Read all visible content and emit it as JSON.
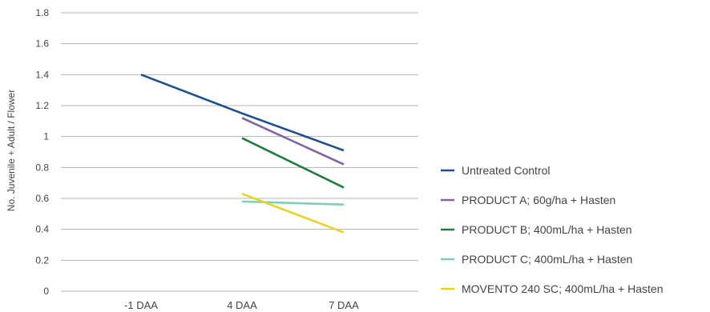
{
  "chart_data": {
    "type": "line",
    "title": "",
    "xlabel": "",
    "ylabel": "No. Juvenile + Adult / Flower",
    "categories": [
      "-1 DAA",
      "4 DAA",
      "7 DAA"
    ],
    "ylim": [
      0,
      1.8
    ],
    "yticks": [
      "0",
      "0.2",
      "0.4",
      "0.6",
      "0.8",
      "1",
      "1.2",
      "1.4",
      "1.6",
      "1.8"
    ],
    "grid": true,
    "legend_position": "right",
    "series": [
      {
        "name": "Untreated Control",
        "color": "#1f4e8c",
        "values": [
          1.4,
          1.15,
          0.91
        ]
      },
      {
        "name": "PRODUCT A;  60g/ha + Hasten",
        "color": "#8064a2",
        "values": [
          null,
          1.12,
          0.82
        ]
      },
      {
        "name": "PRODUCT B; 400mL/ha + Hasten",
        "color": "#1e7d3c",
        "values": [
          null,
          0.99,
          0.67
        ]
      },
      {
        "name": "PRODUCT C; 400mL/ha + Hasten",
        "color": "#7ccfb8",
        "values": [
          null,
          0.58,
          0.56
        ]
      },
      {
        "name": "MOVENTO 240 SC; 400mL/ha + Hasten",
        "color": "#e8d12a",
        "values": [
          null,
          0.63,
          0.38
        ]
      }
    ]
  }
}
